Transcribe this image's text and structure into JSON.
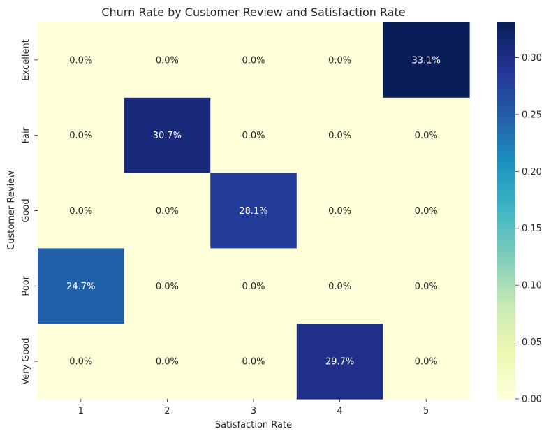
{
  "chart_data": {
    "type": "heatmap",
    "title": "Churn Rate by Customer Review and Satisfaction Rate",
    "xlabel": "Satisfaction Rate",
    "ylabel": "Customer Review",
    "x_categories": [
      "1",
      "2",
      "3",
      "4",
      "5"
    ],
    "y_categories": [
      "Excellent",
      "Fair",
      "Good",
      "Poor",
      "Very Good"
    ],
    "values": [
      [
        0.0,
        0.0,
        0.0,
        0.0,
        0.331
      ],
      [
        0.0,
        0.307,
        0.0,
        0.0,
        0.0
      ],
      [
        0.0,
        0.0,
        0.281,
        0.0,
        0.0
      ],
      [
        0.247,
        0.0,
        0.0,
        0.0,
        0.0
      ],
      [
        0.0,
        0.0,
        0.0,
        0.297,
        0.0
      ]
    ],
    "cell_labels": [
      [
        "0.0%",
        "0.0%",
        "0.0%",
        "0.0%",
        "33.1%"
      ],
      [
        "0.0%",
        "30.7%",
        "0.0%",
        "0.0%",
        "0.0%"
      ],
      [
        "0.0%",
        "0.0%",
        "28.1%",
        "0.0%",
        "0.0%"
      ],
      [
        "24.7%",
        "0.0%",
        "0.0%",
        "0.0%",
        "0.0%"
      ],
      [
        "0.0%",
        "0.0%",
        "0.0%",
        "29.7%",
        "0.0%"
      ]
    ],
    "colormap": "YlGnBu",
    "color_range": [
      0.0,
      0.331
    ],
    "colorbar_ticks": [
      0.0,
      0.05,
      0.1,
      0.15,
      0.2,
      0.25,
      0.3
    ],
    "colorbar_tick_labels": [
      "0.00",
      "0.05",
      "0.10",
      "0.15",
      "0.20",
      "0.25",
      "0.30"
    ],
    "grid": false,
    "legend": "colorbar-right"
  }
}
